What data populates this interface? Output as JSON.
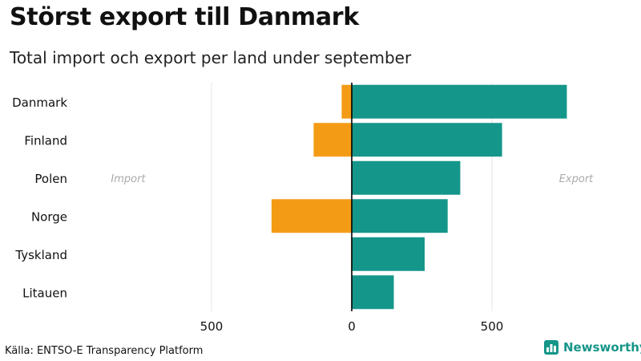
{
  "title": "Störst export till Danmark",
  "subtitle": "Total import och export per land under september",
  "source": "Källa: ENTSO-E Transparency Platform",
  "brand": {
    "name": "Newsworthy",
    "icon": "chart-logo-icon"
  },
  "colors": {
    "import": "#f49b16",
    "export": "#15968a",
    "axis": "#000000",
    "grid": "#e6e6e6"
  },
  "chart_data": {
    "type": "bar",
    "orientation": "horizontal-diverging",
    "categories": [
      "Danmark",
      "Finland",
      "Polen",
      "Norge",
      "Tyskland",
      "Litauen"
    ],
    "series": [
      {
        "name": "Import",
        "values": [
          36,
          136,
          0,
          286,
          2,
          0
        ]
      },
      {
        "name": "Export",
        "values": [
          767,
          536,
          387,
          342,
          260,
          150
        ]
      }
    ],
    "xlim": [
      -500,
      800
    ],
    "x_ticks": [
      -500,
      0,
      500
    ],
    "x_tick_labels": [
      "500",
      "0",
      "500"
    ],
    "annotations": {
      "left": "Import",
      "right": "Export"
    },
    "grid": true
  }
}
